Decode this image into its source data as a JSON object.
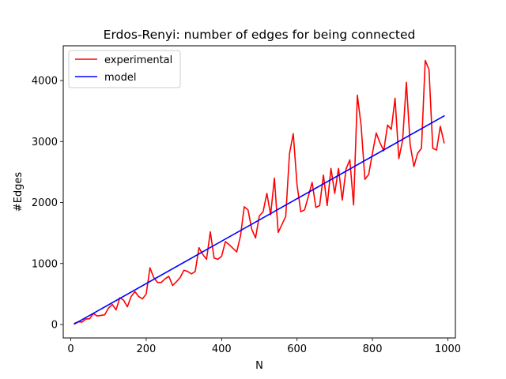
{
  "chart_data": {
    "type": "line",
    "title": "Erdos-Renyi: number of edges for being connected",
    "xlabel": "N",
    "ylabel": "#Edges",
    "xlim": [
      -20,
      1020
    ],
    "ylim": [
      -220,
      4570
    ],
    "xticks": [
      0,
      200,
      400,
      600,
      800,
      1000
    ],
    "yticks": [
      0,
      1000,
      2000,
      3000,
      4000
    ],
    "grid": false,
    "legend_position": "top-left",
    "series": [
      {
        "name": "experimental",
        "color": "#ff0000",
        "x": [
          10,
          20,
          30,
          40,
          50,
          60,
          70,
          80,
          90,
          100,
          110,
          120,
          130,
          140,
          150,
          160,
          170,
          180,
          190,
          200,
          210,
          220,
          230,
          240,
          250,
          260,
          270,
          280,
          290,
          300,
          310,
          320,
          330,
          340,
          350,
          360,
          370,
          380,
          390,
          400,
          410,
          420,
          430,
          440,
          450,
          460,
          470,
          480,
          490,
          500,
          510,
          520,
          530,
          540,
          550,
          560,
          570,
          580,
          590,
          600,
          610,
          620,
          630,
          640,
          650,
          660,
          670,
          680,
          690,
          700,
          710,
          720,
          730,
          740,
          750,
          760,
          770,
          780,
          790,
          800,
          810,
          820,
          830,
          840,
          850,
          860,
          870,
          880,
          890,
          900,
          910,
          920,
          930,
          940,
          950,
          960,
          970,
          980,
          990
        ],
        "y": [
          20,
          45,
          40,
          90,
          95,
          180,
          140,
          150,
          160,
          270,
          330,
          240,
          440,
          400,
          290,
          460,
          540,
          460,
          420,
          500,
          930,
          770,
          690,
          690,
          750,
          790,
          640,
          700,
          770,
          890,
          870,
          830,
          870,
          1260,
          1150,
          1070,
          1520,
          1090,
          1070,
          1120,
          1360,
          1310,
          1250,
          1190,
          1450,
          1930,
          1880,
          1560,
          1420,
          1780,
          1850,
          2150,
          1800,
          2400,
          1510,
          1640,
          1770,
          2800,
          3130,
          2290,
          1850,
          1880,
          2100,
          2330,
          1920,
          1950,
          2450,
          1950,
          2560,
          2150,
          2560,
          2040,
          2550,
          2700,
          1960,
          3760,
          3260,
          2380,
          2460,
          2810,
          3140,
          2980,
          2850,
          3270,
          3200,
          3710,
          2720,
          3020,
          3970,
          2950,
          2590,
          2810,
          2890,
          4330,
          4180,
          2890,
          2860,
          3250,
          2980
        ]
      },
      {
        "name": "model",
        "color": "#0000ff",
        "x": [
          10,
          990
        ],
        "y": [
          10,
          3420
        ]
      }
    ]
  }
}
